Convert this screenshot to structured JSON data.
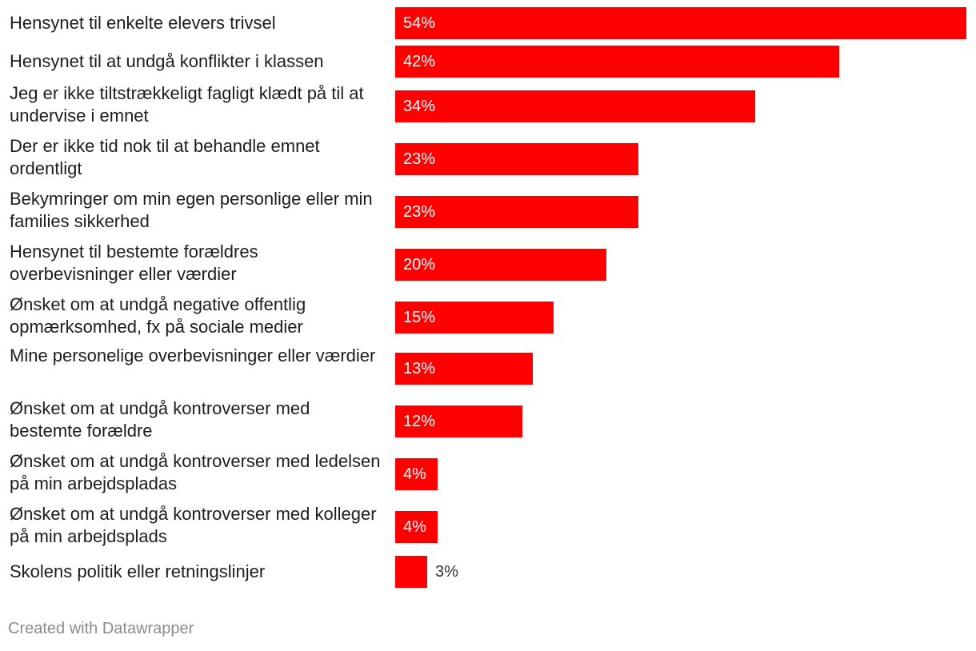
{
  "chart_data": {
    "type": "bar",
    "orientation": "horizontal",
    "categories": [
      "Hensynet til enkelte elevers trivsel",
      "Hensynet til at undgå konflikter i klassen",
      "Jeg er ikke tiltstrækkeligt fagligt klædt på til at undervise i emnet",
      "Der er ikke tid nok til at behandle emnet ordentligt",
      "Bekymringer om min egen personlige eller min families sikkerhed",
      "Hensynet til bestemte forældres overbevisninger eller værdier",
      "Ønsket om at undgå negative offentlig opmærksomhed, fx på sociale medier",
      "Mine personelige overbevisninger eller værdier",
      "Ønsket om at undgå kontroverser med bestemte forældre",
      "Ønsket om at undgå kontroverser med ledelsen på min arbejdspladas",
      "Ønsket om at undgå kontroverser med kolleger på min arbejdsplads",
      "Skolens politik eller retningslinjer"
    ],
    "values": [
      54,
      42,
      34,
      23,
      23,
      20,
      15,
      13,
      12,
      4,
      4,
      3
    ],
    "value_labels": [
      "54%",
      "42%",
      "34%",
      "23%",
      "23%",
      "20%",
      "15%",
      "13%",
      "12%",
      "4%",
      "4%",
      "3%"
    ],
    "bar_color": "#ff0000",
    "xlim": [
      0,
      54
    ],
    "grid": false,
    "legend": "none"
  },
  "footer": {
    "credit": "Created with Datawrapper"
  }
}
